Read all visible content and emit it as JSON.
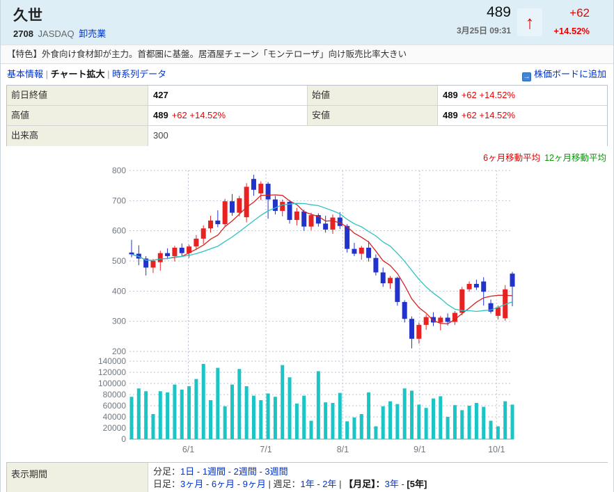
{
  "header": {
    "title": "久世",
    "code": "2708",
    "market": "JASDAQ",
    "industry": "卸売業",
    "price": "489",
    "datetime": "3月25日 09:31",
    "change": "+62",
    "change_pct": "+14.52%",
    "up_arrow": "↑",
    "accent_up": "#ee0000"
  },
  "feature_text": "【特色】外食向け食材卸が主力。首都圏に基盤。居酒屋チェーン「モンテローザ」向け販売比率大きい",
  "nav": {
    "parts": [
      {
        "t": "基本情報",
        "s": "link"
      },
      {
        "t": " | ",
        "s": "sep"
      },
      {
        "t": "チャート拡大",
        "s": "bold"
      },
      {
        "t": " | ",
        "s": "sep"
      },
      {
        "t": "時系列データ",
        "s": "link"
      }
    ],
    "add_board_label": "株価ボードに追加",
    "add_board_icon": "→"
  },
  "quote": {
    "prev_close": {
      "label": "前日終値",
      "value": "427",
      "change": ""
    },
    "open": {
      "label": "始値",
      "value": "489",
      "change": "+62 +14.52%"
    },
    "high": {
      "label": "高値",
      "value": "489",
      "change": "+62 +14.52%"
    },
    "low": {
      "label": "安値",
      "value": "489",
      "change": "+62 +14.52%"
    },
    "volume": {
      "label": "出来高",
      "value": "300"
    }
  },
  "chart_data": {
    "type": "candlestick+volume",
    "legend": [
      {
        "label": "6ヶ月移動平均",
        "color": "#dd0000"
      },
      {
        "label": "12ヶ月移動平均",
        "color": "#009900"
      }
    ],
    "price_axis": {
      "ticks": [
        800,
        700,
        600,
        500,
        400,
        300,
        200
      ]
    },
    "volume_axis": {
      "ticks": [
        140000,
        120000,
        100000,
        80000,
        60000,
        40000,
        20000,
        0
      ]
    },
    "x_ticks": [
      {
        "label": "6/1",
        "i": 7.9
      },
      {
        "label": "7/1",
        "i": 18.7
      },
      {
        "label": "8/1",
        "i": 29.4
      },
      {
        "label": "9/1",
        "i": 40.1
      },
      {
        "label": "10/1",
        "i": 50.8
      }
    ],
    "candles": [
      [
        528,
        570,
        512,
        522
      ],
      [
        524,
        552,
        486,
        508
      ],
      [
        508,
        516,
        452,
        478
      ],
      [
        478,
        506,
        460,
        500
      ],
      [
        496,
        534,
        468,
        526
      ],
      [
        526,
        542,
        506,
        516
      ],
      [
        516,
        550,
        498,
        544
      ],
      [
        544,
        558,
        516,
        526
      ],
      [
        526,
        554,
        510,
        548
      ],
      [
        548,
        586,
        536,
        574
      ],
      [
        574,
        618,
        556,
        608
      ],
      [
        608,
        650,
        594,
        634
      ],
      [
        634,
        668,
        612,
        622
      ],
      [
        622,
        706,
        616,
        698
      ],
      [
        698,
        722,
        650,
        660
      ],
      [
        660,
        716,
        648,
        708
      ],
      [
        645,
        758,
        628,
        746
      ],
      [
        772,
        786,
        716,
        736
      ],
      [
        724,
        764,
        702,
        756
      ],
      [
        756,
        762,
        640,
        704
      ],
      [
        704,
        716,
        654,
        666
      ],
      [
        666,
        704,
        648,
        696
      ],
      [
        696,
        702,
        624,
        636
      ],
      [
        636,
        676,
        618,
        664
      ],
      [
        664,
        670,
        600,
        614
      ],
      [
        614,
        660,
        602,
        652
      ],
      [
        652,
        658,
        614,
        624
      ],
      [
        624,
        650,
        594,
        604
      ],
      [
        604,
        654,
        590,
        644
      ],
      [
        644,
        662,
        606,
        616
      ],
      [
        616,
        622,
        528,
        540
      ],
      [
        540,
        560,
        516,
        524
      ],
      [
        524,
        550,
        504,
        544
      ],
      [
        544,
        566,
        498,
        510
      ],
      [
        510,
        522,
        452,
        462
      ],
      [
        462,
        478,
        414,
        426
      ],
      [
        426,
        450,
        408,
        444
      ],
      [
        444,
        448,
        352,
        364
      ],
      [
        364,
        370,
        296,
        308
      ],
      [
        308,
        316,
        210,
        242
      ],
      [
        242,
        296,
        226,
        288
      ],
      [
        288,
        322,
        272,
        314
      ],
      [
        314,
        330,
        284,
        296
      ],
      [
        296,
        318,
        270,
        312
      ],
      [
        312,
        326,
        286,
        298
      ],
      [
        298,
        334,
        288,
        328
      ],
      [
        328,
        414,
        320,
        406
      ],
      [
        406,
        432,
        398,
        424
      ],
      [
        424,
        438,
        404,
        412
      ],
      [
        432,
        446,
        352,
        398
      ],
      [
        360,
        372,
        326,
        332
      ],
      [
        318,
        352,
        306,
        346
      ],
      [
        310,
        420,
        302,
        406
      ],
      [
        458,
        464,
        350,
        415
      ]
    ],
    "volumes": [
      76000,
      91000,
      86000,
      45000,
      86000,
      84000,
      98000,
      89000,
      95000,
      108000,
      135000,
      70000,
      128000,
      59000,
      98000,
      126000,
      95000,
      78000,
      70000,
      82000,
      76000,
      133000,
      111000,
      64000,
      78000,
      33000,
      122000,
      66000,
      65000,
      83000,
      32000,
      39000,
      45000,
      84000,
      23000,
      59000,
      68000,
      63000,
      91000,
      87000,
      62000,
      56000,
      73000,
      77000,
      40000,
      61000,
      52000,
      60000,
      65000,
      58000,
      33000,
      23000,
      68000,
      62000
    ],
    "ma_lines": [
      {
        "window": 6,
        "color": "#d42222"
      },
      {
        "window": 12,
        "color": "#2ec2c2"
      }
    ],
    "colors": {
      "up": "#e62222",
      "down": "#2233cc",
      "volume_bar": "#1cc5c5",
      "grid": "#b9c3d3",
      "axis_label": "#707880",
      "baseline": "#909090"
    }
  },
  "period": {
    "label": "表示期間",
    "line1": [
      {
        "t": "分足：",
        "s": "plain"
      },
      {
        "t": "1日",
        "s": "link"
      },
      {
        "t": " - ",
        "s": "plain"
      },
      {
        "t": "1週間",
        "s": "link"
      },
      {
        "t": " - ",
        "s": "plain"
      },
      {
        "t": "2週間",
        "s": "link"
      },
      {
        "t": " - ",
        "s": "plain"
      },
      {
        "t": "3週間",
        "s": "link"
      }
    ],
    "line2": [
      {
        "t": "日足：",
        "s": "plain"
      },
      {
        "t": "3ヶ月",
        "s": "link"
      },
      {
        "t": " - ",
        "s": "plain"
      },
      {
        "t": "6ヶ月",
        "s": "link"
      },
      {
        "t": " - ",
        "s": "plain"
      },
      {
        "t": "9ヶ月",
        "s": "link"
      },
      {
        "t": " | ",
        "s": "plain"
      },
      {
        "t": "週足：",
        "s": "plain"
      },
      {
        "t": "1年",
        "s": "link"
      },
      {
        "t": " - ",
        "s": "plain"
      },
      {
        "t": "2年",
        "s": "link"
      },
      {
        "t": " | ",
        "s": "plain"
      },
      {
        "t": "【月足】：",
        "s": "bold"
      },
      {
        "t": "3年",
        "s": "link"
      },
      {
        "t": " - ",
        "s": "plain"
      },
      {
        "t": "[5年]",
        "s": "bold"
      }
    ]
  }
}
